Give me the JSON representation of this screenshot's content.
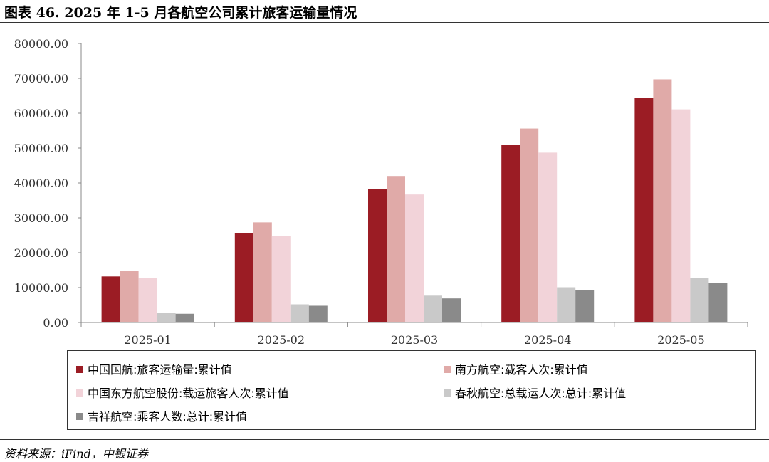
{
  "figure": {
    "title": "图表 46.   2025 年 1-5 月各航空公司累计旅客运输量情况",
    "source": "资料来源：iFind，中银证券"
  },
  "chart_data": {
    "type": "bar",
    "title": "",
    "xlabel": "",
    "ylabel": "",
    "ylim": [
      0,
      80000
    ],
    "yticks": [
      "0.00",
      "10000.00",
      "20000.00",
      "30000.00",
      "40000.00",
      "50000.00",
      "60000.00",
      "70000.00",
      "80000.00"
    ],
    "categories": [
      "2025-01",
      "2025-02",
      "2025-03",
      "2025-04",
      "2025-05"
    ],
    "grid": false,
    "legend_position": "bottom",
    "series": [
      {
        "name": "中国国航:旅客运输量:累计值",
        "color": "#9b1c24",
        "values": [
          13200,
          25700,
          38300,
          51000,
          64300
        ]
      },
      {
        "name": "南方航空:载客人次:累计值",
        "color": "#e0aaa8",
        "values": [
          14800,
          28700,
          42000,
          55600,
          69700
        ]
      },
      {
        "name": "中国东方航空股份:载运旅客人次:累计值",
        "color": "#f2d3d9",
        "values": [
          12700,
          24800,
          36700,
          48700,
          61100
        ]
      },
      {
        "name": "春秋航空:总载运人次:总计:累计值",
        "color": "#c9c9c9",
        "values": [
          2800,
          5200,
          7700,
          10100,
          12700
        ]
      },
      {
        "name": "吉祥航空:乘客人数:总计:累计值",
        "color": "#8a8a8a",
        "values": [
          2500,
          4800,
          6900,
          9200,
          11400
        ]
      }
    ]
  }
}
